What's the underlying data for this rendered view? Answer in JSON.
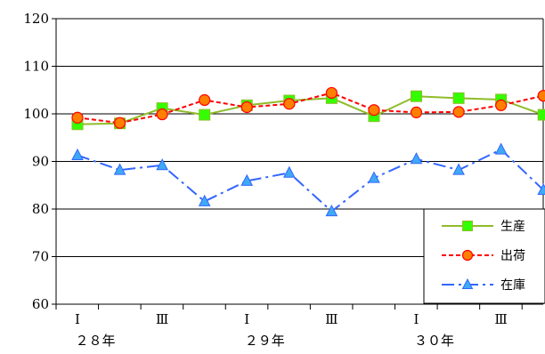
{
  "chart_data": {
    "type": "line",
    "ylim": [
      60,
      120
    ],
    "yticks": [
      60,
      70,
      80,
      90,
      100,
      110,
      120
    ],
    "x_tick_labels": [
      "Ⅰ",
      "Ⅲ",
      "Ⅰ",
      "Ⅲ",
      "Ⅰ",
      "Ⅲ"
    ],
    "x_tick_positions": [
      0,
      2,
      4,
      6,
      8,
      10
    ],
    "year_labels": [
      {
        "text": "２８年",
        "at": 0
      },
      {
        "text": "２９年",
        "at": 4
      },
      {
        "text": "３０年",
        "at": 8
      }
    ],
    "legend_position": "bottom-right",
    "grid": "horizontal",
    "series": [
      {
        "name": "生産",
        "color": "#8fbc2a",
        "marker": "square",
        "marker_fill": "#33ff00",
        "line_style": "solid",
        "values": [
          97.8,
          98.0,
          101.2,
          99.8,
          101.8,
          102.8,
          103.3,
          99.5,
          103.7,
          103.3,
          103.0,
          99.8
        ]
      },
      {
        "name": "出荷",
        "color": "#ff0000",
        "marker": "circle",
        "marker_fill": "#ff7f00",
        "line_style": "dashed",
        "values": [
          99.2,
          98.1,
          99.9,
          102.9,
          101.4,
          102.1,
          104.4,
          100.8,
          100.3,
          100.4,
          101.8,
          103.8
        ]
      },
      {
        "name": "在庫",
        "color": "#3366ff",
        "marker": "triangle",
        "marker_fill": "#3fa9f5",
        "line_style": "dashdot",
        "values": [
          91.3,
          88.2,
          89.2,
          81.6,
          85.9,
          87.6,
          79.5,
          86.5,
          90.5,
          88.2,
          92.5,
          84.0
        ]
      }
    ]
  }
}
